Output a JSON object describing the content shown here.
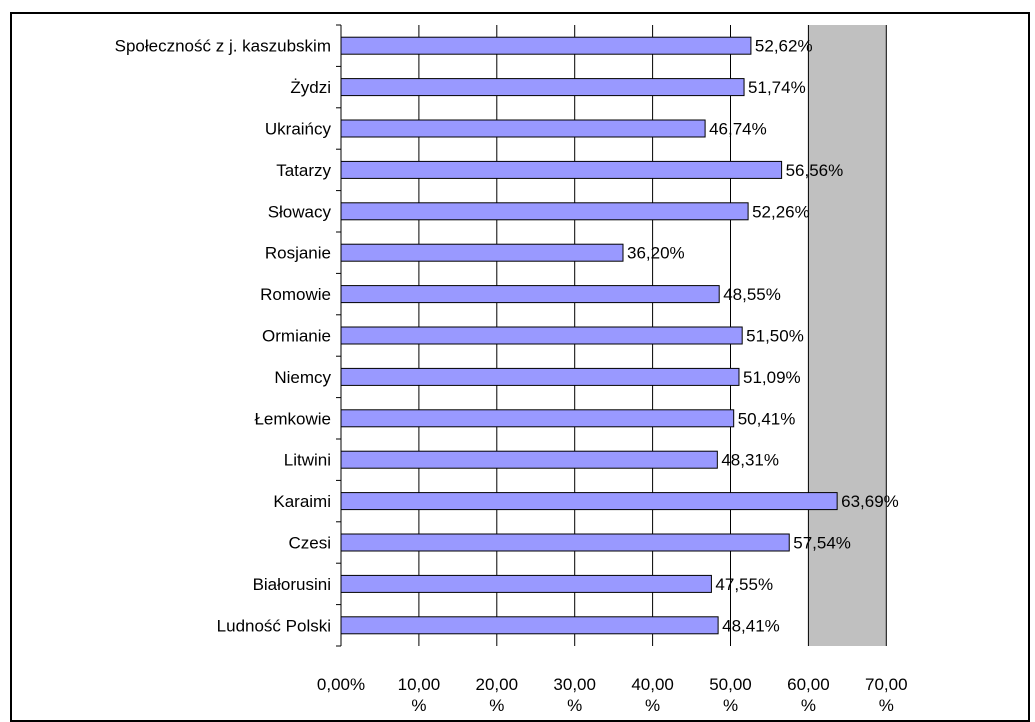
{
  "chart_data": {
    "type": "bar",
    "orientation": "horizontal",
    "title": "",
    "xlabel": "",
    "ylabel": "",
    "xlim": [
      0,
      70
    ],
    "ticks": [
      {
        "value": 0,
        "label_line1": "0,00%",
        "label_line2": ""
      },
      {
        "value": 10,
        "label_line1": "10,00",
        "label_line2": "%"
      },
      {
        "value": 20,
        "label_line1": "20,00",
        "label_line2": "%"
      },
      {
        "value": 30,
        "label_line1": "30,00",
        "label_line2": "%"
      },
      {
        "value": 40,
        "label_line1": "40,00",
        "label_line2": "%"
      },
      {
        "value": 50,
        "label_line1": "50,00",
        "label_line2": "%"
      },
      {
        "value": 60,
        "label_line1": "60,00",
        "label_line2": "%"
      },
      {
        "value": 70,
        "label_line1": "70,00",
        "label_line2": "%"
      }
    ],
    "grid": true,
    "legend": "none",
    "colors": {
      "bar_fill": "#9999ff",
      "bar_stroke": "#000000",
      "plot_bg": "#c0c0c0",
      "gridline": "#000000"
    },
    "categories": [
      "Społeczność z j. kaszubskim",
      "Żydzi",
      "Ukraińcy",
      "Tatarzy",
      "Słowacy",
      "Rosjanie",
      "Romowie",
      "Ormianie",
      "Niemcy",
      "Łemkowie",
      "Litwini",
      "Karaimi",
      "Czesi",
      "Białorusini",
      "Ludność Polski"
    ],
    "values": [
      52.62,
      51.74,
      46.74,
      56.56,
      52.26,
      36.2,
      48.55,
      51.5,
      51.09,
      50.41,
      48.31,
      63.69,
      57.54,
      47.55,
      48.41
    ],
    "value_labels": [
      "52,62%",
      "51,74%",
      "46,74%",
      "56,56%",
      "52,26%",
      "36,20%",
      "48,55%",
      "51,50%",
      "51,09%",
      "50,41%",
      "48,31%",
      "63,69%",
      "57,54%",
      "47,55%",
      "48,41%"
    ]
  }
}
